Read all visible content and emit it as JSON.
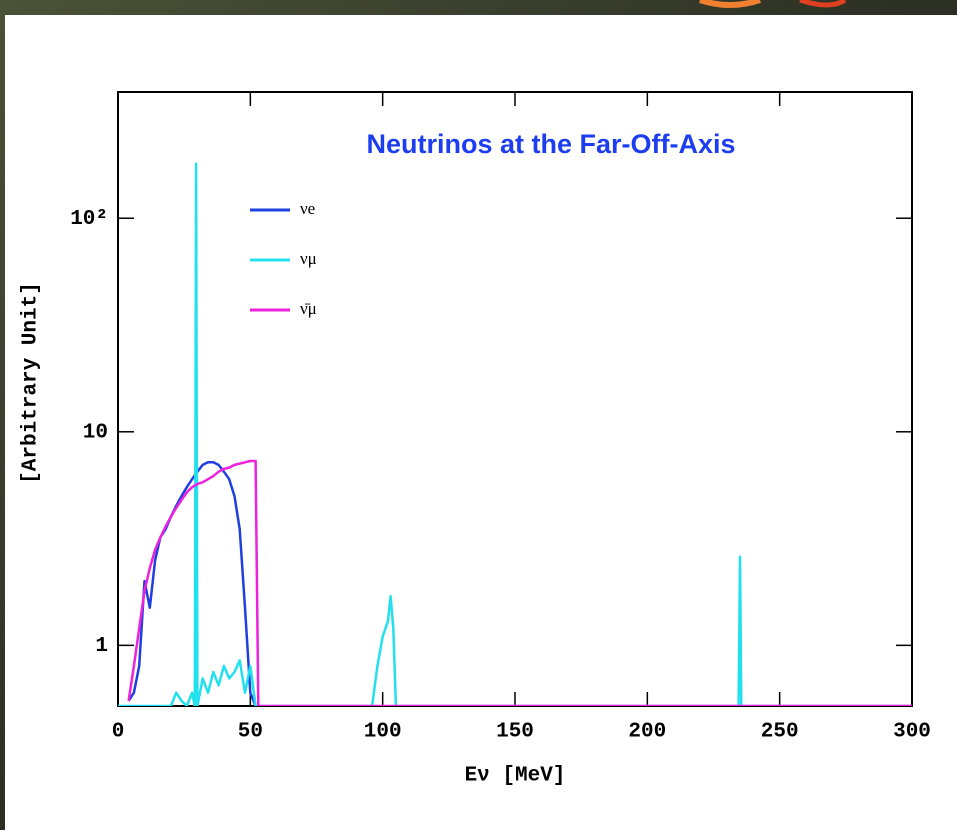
{
  "chart_data": {
    "type": "line",
    "title": "Neutrinos at the Far-Off-Axis",
    "x_label": "Eν [MeV]",
    "y_label": "[Arbitrary Unit]",
    "xlim": [
      0,
      300
    ],
    "ylim": [
      0.52,
      390
    ],
    "log_y": true,
    "xticks": [
      0,
      50,
      100,
      150,
      200,
      250,
      300
    ],
    "yticks": [
      1,
      10,
      {
        "value": 100,
        "label": "10²"
      }
    ],
    "legend": "upper left",
    "series": [
      {
        "name": "νe",
        "color": "#1f3fe0",
        "x": [
          4,
          6,
          8,
          10,
          12,
          14,
          16,
          18,
          20,
          22,
          24,
          26,
          28,
          30,
          32,
          34,
          36,
          38,
          40,
          42,
          44,
          46,
          48,
          50,
          52
        ],
        "values": [
          0.55,
          0.6,
          0.8,
          2.0,
          1.5,
          2.5,
          3.2,
          3.5,
          4.0,
          4.5,
          5.0,
          5.5,
          6.0,
          6.5,
          7.0,
          7.2,
          7.2,
          7.0,
          6.5,
          6.0,
          5.0,
          3.5,
          1.5,
          0.6,
          0.52
        ]
      },
      {
        "name": "νμ",
        "color": "#22e0ee",
        "x": [
          0,
          20,
          22,
          24,
          26,
          28,
          29,
          29.5,
          30,
          32,
          34,
          36,
          38,
          40,
          42,
          44,
          46,
          48,
          50,
          52,
          96,
          98,
          100,
          102,
          103,
          104,
          105,
          234.5,
          235,
          235.5,
          300
        ],
        "values": [
          0.52,
          0.52,
          0.6,
          0.55,
          0.52,
          0.6,
          0.52,
          180,
          0.52,
          0.7,
          0.6,
          0.75,
          0.65,
          0.8,
          0.7,
          0.75,
          0.85,
          0.6,
          0.8,
          0.52,
          0.52,
          0.8,
          1.1,
          1.3,
          1.7,
          1.2,
          0.52,
          0.52,
          2.6,
          0.52,
          0.52
        ]
      },
      {
        "name": "ν̄μ",
        "color": "#ee22dd",
        "x": [
          4,
          6,
          8,
          10,
          12,
          14,
          16,
          18,
          20,
          22,
          24,
          26,
          28,
          30,
          32,
          34,
          36,
          38,
          40,
          42,
          44,
          46,
          48,
          50,
          52,
          53,
          300
        ],
        "values": [
          0.55,
          0.8,
          1.2,
          1.8,
          2.3,
          2.8,
          3.2,
          3.6,
          4.0,
          4.4,
          4.8,
          5.2,
          5.5,
          5.7,
          5.8,
          6.0,
          6.2,
          6.5,
          6.7,
          6.8,
          7.0,
          7.1,
          7.2,
          7.3,
          7.3,
          0.52,
          0.52
        ]
      }
    ]
  }
}
